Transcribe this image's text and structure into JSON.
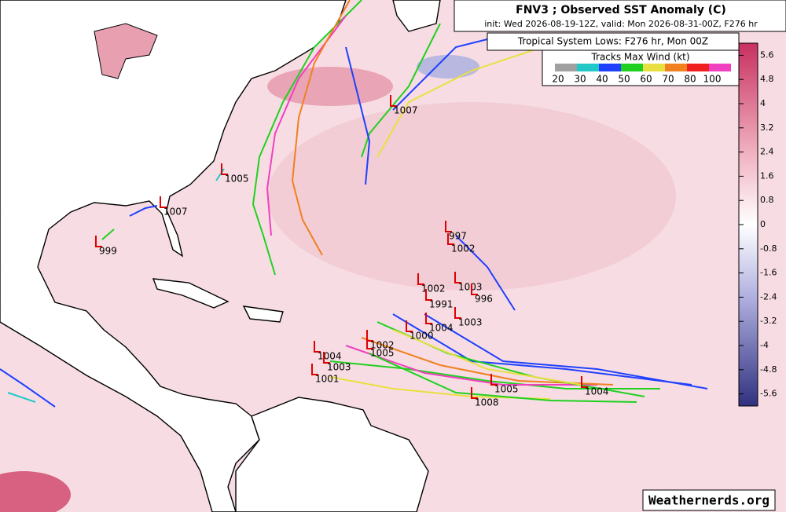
{
  "header": {
    "title": "FNV3 ; Observed SST Anomaly (C)",
    "subtitle": "init: Wed 2026-08-19-12Z, valid: Mon 2026-08-31-00Z, F276 hr"
  },
  "lows_title": "Tropical System Lows: F276 hr, Mon 00Z",
  "wind_legend": {
    "title": "Tracks Max Wind (kt)",
    "items": [
      {
        "label": "20",
        "color": "#a0a0a0"
      },
      {
        "label": "30",
        "color": "#20c8c8"
      },
      {
        "label": "40",
        "color": "#2040ff"
      },
      {
        "label": "50",
        "color": "#20d020"
      },
      {
        "label": "60",
        "color": "#e8e040"
      },
      {
        "label": "70",
        "color": "#f08020"
      },
      {
        "label": "80",
        "color": "#f02020"
      },
      {
        "label": "100",
        "color": "#f040c0"
      }
    ]
  },
  "colorbar": {
    "lim": [
      -6,
      6
    ],
    "ticks": [
      5.6,
      4.8,
      4,
      3.2,
      2.4,
      1.6,
      0.8,
      0,
      -0.8,
      -1.6,
      -2.4,
      -3.2,
      -4,
      -4.8,
      -5.6
    ]
  },
  "lows": [
    "1007",
    "1005",
    "1007",
    "999",
    "997",
    "1002",
    "1003",
    "996",
    "1002",
    "1991",
    "1003",
    "1004",
    "1005",
    "1004",
    "1008",
    "1004",
    "1003",
    "1001",
    "1002",
    "1005",
    "1000"
  ],
  "credit": "Weathernerds.org"
}
